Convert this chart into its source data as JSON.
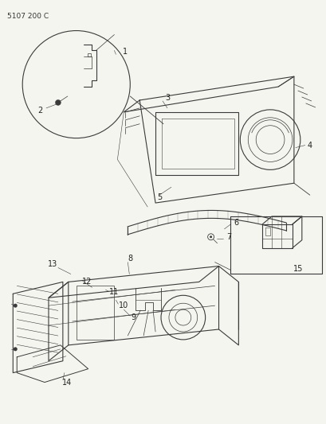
{
  "title": "5107 200 C",
  "bg": "#f5f5f0",
  "lc": "#3a3a3a",
  "fig_width": 4.1,
  "fig_height": 5.33,
  "dpi": 100
}
